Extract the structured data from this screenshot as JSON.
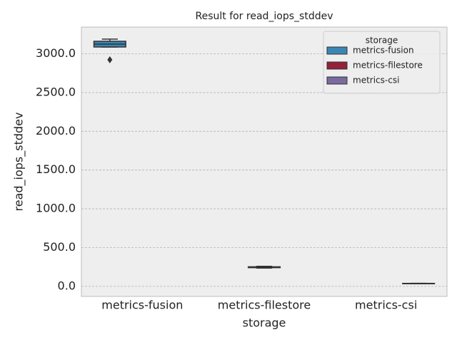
{
  "chart_data": {
    "type": "box",
    "title": "Result for read_iops_stddev",
    "x_label": "storage",
    "y_label": "read_iops_stddev",
    "categories": [
      "metrics-fusion",
      "metrics-filestore",
      "metrics-csi"
    ],
    "legend_title": "storage",
    "legend_position": "upper right",
    "grid": true,
    "ylim": [
      -130,
      3345
    ],
    "yticks": [
      {
        "value": 0,
        "label": "0.0"
      },
      {
        "value": 500,
        "label": "500.0"
      },
      {
        "value": 1000,
        "label": "1000.0"
      },
      {
        "value": 1500,
        "label": "1500.0"
      },
      {
        "value": 2000,
        "label": "2000.0"
      },
      {
        "value": 2500,
        "label": "2500.0"
      },
      {
        "value": 3000,
        "label": "3000.0"
      }
    ],
    "series": [
      {
        "name": "metrics-fusion",
        "color": "#3a87b5",
        "values": [
          {
            "min": 3088,
            "q1": 3088,
            "median": 3125,
            "q3": 3162,
            "max": 3190,
            "outliers": [
              2923
            ]
          },
          null,
          null
        ]
      },
      {
        "name": "metrics-filestore",
        "color": "#94203a",
        "values": [
          null,
          {
            "min": 236,
            "q1": 241,
            "median": 248,
            "q3": 252,
            "max": 258,
            "outliers": []
          },
          null
        ]
      },
      {
        "name": "metrics-csi",
        "color": "#7a6a9e",
        "values": [
          null,
          null,
          {
            "min": 34,
            "q1": 35,
            "median": 37,
            "q3": 38,
            "max": 39,
            "outliers": []
          }
        ]
      }
    ]
  }
}
